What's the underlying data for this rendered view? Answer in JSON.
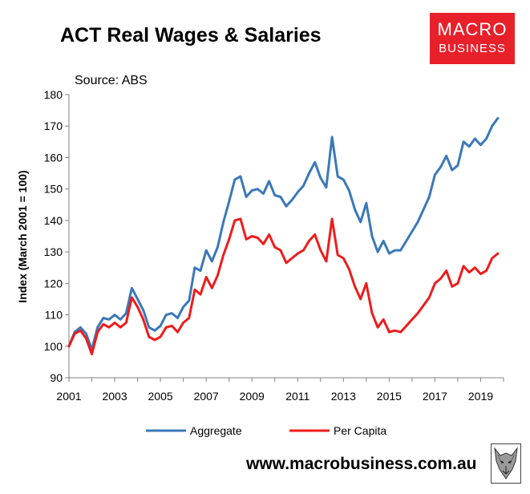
{
  "header": {
    "title": "ACT Real Wages & Salaries",
    "source": "Source: ABS"
  },
  "logo": {
    "line1": "MACRO",
    "line2": "BUSINESS",
    "color": "#e8202a"
  },
  "footer": {
    "url": "www.macrobusiness.com.au"
  },
  "chart_data": {
    "type": "line",
    "title": "ACT Real Wages & Salaries",
    "ylabel": "Index (March 2001 = 100)",
    "xlabel": "",
    "ylim": [
      90,
      180
    ],
    "xlim": [
      2001,
      2020
    ],
    "yticks": [
      90,
      100,
      110,
      120,
      130,
      140,
      150,
      160,
      170,
      180
    ],
    "xticks": [
      "2001",
      "2003",
      "2005",
      "2007",
      "2009",
      "2011",
      "2013",
      "2015",
      "2017",
      "2019"
    ],
    "grid": false,
    "legend_position": "bottom",
    "series": [
      {
        "name": "Aggregate",
        "color": "#3a78b9",
        "x": [
          2001,
          2001.25,
          2001.5,
          2001.75,
          2002,
          2002.25,
          2002.5,
          2002.75,
          2003,
          2003.25,
          2003.5,
          2003.75,
          2004,
          2004.25,
          2004.5,
          2004.75,
          2005,
          2005.25,
          2005.5,
          2005.75,
          2006,
          2006.25,
          2006.5,
          2006.75,
          2007,
          2007.25,
          2007.5,
          2007.75,
          2008,
          2008.25,
          2008.5,
          2008.75,
          2009,
          2009.25,
          2009.5,
          2009.75,
          2010,
          2010.25,
          2010.5,
          2010.75,
          2011,
          2011.25,
          2011.5,
          2011.75,
          2012,
          2012.25,
          2012.5,
          2012.75,
          2013,
          2013.25,
          2013.5,
          2013.75,
          2014,
          2014.25,
          2014.5,
          2014.75,
          2015,
          2015.25,
          2015.5,
          2015.75,
          2016,
          2016.25,
          2016.5,
          2016.75,
          2017,
          2017.25,
          2017.5,
          2017.75,
          2018,
          2018.25,
          2018.5,
          2018.75,
          2019,
          2019.25,
          2019.5,
          2019.75
        ],
        "values": [
          100,
          104.5,
          106,
          104,
          99,
          106,
          109,
          108.5,
          110,
          108.5,
          110.5,
          118.5,
          115,
          111.5,
          106,
          105,
          106.5,
          110,
          110.5,
          109,
          112.5,
          114.5,
          125,
          124,
          130.5,
          127,
          131.5,
          139.5,
          146,
          153,
          154,
          147.5,
          149.5,
          150,
          148.5,
          152.5,
          148,
          147.5,
          144.5,
          146.5,
          149,
          151,
          155,
          158.5,
          153.5,
          150.5,
          166.5,
          154,
          153,
          149.5,
          143.5,
          139.5,
          145.5,
          135,
          130,
          133.5,
          129.5,
          130.5,
          130.5,
          133.5,
          136.5,
          139.5,
          143.5,
          147.5,
          154.5,
          157,
          160.5,
          156,
          157.5,
          165,
          163.5,
          166,
          164,
          166,
          170,
          172.5
        ]
      },
      {
        "name": "Per Capita",
        "color": "#ee1c1c",
        "x": [
          2001,
          2001.25,
          2001.5,
          2001.75,
          2002,
          2002.25,
          2002.5,
          2002.75,
          2003,
          2003.25,
          2003.5,
          2003.75,
          2004,
          2004.25,
          2004.5,
          2004.75,
          2005,
          2005.25,
          2005.5,
          2005.75,
          2006,
          2006.25,
          2006.5,
          2006.75,
          2007,
          2007.25,
          2007.5,
          2007.75,
          2008,
          2008.25,
          2008.5,
          2008.75,
          2009,
          2009.25,
          2009.5,
          2009.75,
          2010,
          2010.25,
          2010.5,
          2010.75,
          2011,
          2011.25,
          2011.5,
          2011.75,
          2012,
          2012.25,
          2012.5,
          2012.75,
          2013,
          2013.25,
          2013.5,
          2013.75,
          2014,
          2014.25,
          2014.5,
          2014.75,
          2015,
          2015.25,
          2015.5,
          2015.75,
          2016,
          2016.25,
          2016.5,
          2016.75,
          2017,
          2017.25,
          2017.5,
          2017.75,
          2018,
          2018.25,
          2018.5,
          2018.75,
          2019,
          2019.25,
          2019.5,
          2019.75
        ],
        "values": [
          100,
          104,
          105,
          102.5,
          97.5,
          104.5,
          107,
          106,
          107.5,
          106,
          107.5,
          115.5,
          112.5,
          108.5,
          103,
          102,
          103,
          106,
          106.5,
          104.5,
          107.5,
          109,
          118,
          116.5,
          122,
          118.5,
          122.5,
          129,
          134,
          140,
          140.5,
          134,
          135,
          134.5,
          132.5,
          135.5,
          131.5,
          130.5,
          126.5,
          128,
          129.5,
          130.5,
          133.5,
          135.5,
          130.5,
          127,
          140.5,
          129,
          128,
          124.5,
          119,
          115,
          120,
          110.5,
          106,
          108.5,
          104.5,
          105,
          104.5,
          106.5,
          108.5,
          110.5,
          113,
          115.5,
          120,
          121.5,
          124,
          119,
          120,
          125.5,
          123.5,
          125,
          123,
          124,
          128,
          129.5
        ]
      }
    ]
  }
}
